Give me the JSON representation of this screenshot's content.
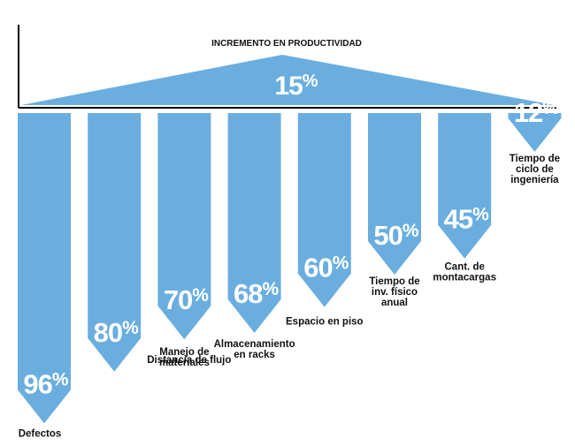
{
  "roof": {
    "title": "INCREMENTO EN PRODUCTIVIDAD",
    "value": 15,
    "value_label": "15%"
  },
  "colors": {
    "bar": "#6aaedf",
    "text": "#111111",
    "axis": "#000000"
  },
  "columns": [
    {
      "value": 96,
      "value_label": "96%",
      "label": [
        "Defectos"
      ]
    },
    {
      "value": 80,
      "value_label": "80%",
      "label": [
        "Distancia de flujo"
      ]
    },
    {
      "value": 70,
      "value_label": "70%",
      "label": [
        "Manejo de",
        "materiales"
      ]
    },
    {
      "value": 68,
      "value_label": "68%",
      "label": [
        "Almacenamiento",
        "en racks"
      ]
    },
    {
      "value": 60,
      "value_label": "60%",
      "label": [
        "Espacio en piso"
      ]
    },
    {
      "value": 50,
      "value_label": "50%",
      "label": [
        "Tiempo de",
        "inv. físico",
        "anual"
      ]
    },
    {
      "value": 45,
      "value_label": "45%",
      "label": [
        "Cant. de",
        "montacargas"
      ]
    },
    {
      "value": 12,
      "value_label": "12%",
      "label": [
        "Tiempo de",
        "ciclo de",
        "ingeniería"
      ]
    }
  ]
}
